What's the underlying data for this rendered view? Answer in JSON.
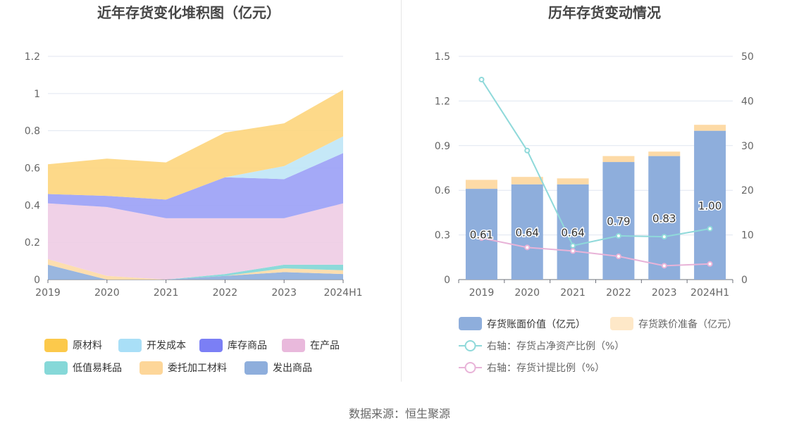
{
  "source": "数据来源：恒生聚源",
  "chart_data": [
    {
      "type": "area",
      "stacked": true,
      "title": "近年存货变化堆积图（亿元）",
      "categories": [
        "2019",
        "2020",
        "2021",
        "2022",
        "2023",
        "2024H1"
      ],
      "ylim": [
        0,
        1.2
      ],
      "yticks": [
        "0",
        "0.2",
        "0.4",
        "0.6",
        "0.8",
        "1",
        "1.2"
      ],
      "grid": true,
      "legend_position": "bottom",
      "series": [
        {
          "name": "发出商品",
          "color": "#8eaedc",
          "values": [
            0.08,
            0.0,
            0.0,
            0.02,
            0.04,
            0.03
          ]
        },
        {
          "name": "委托加工材料",
          "color": "#fddaa6",
          "values": [
            0.03,
            0.02,
            0.0,
            0.0,
            0.02,
            0.02
          ]
        },
        {
          "name": "低值易耗品",
          "color": "#7fd6d6",
          "values": [
            0.0,
            0.0,
            0.0,
            0.01,
            0.02,
            0.03
          ]
        },
        {
          "name": "在产品",
          "color": "#eecce4",
          "values": [
            0.3,
            0.37,
            0.33,
            0.3,
            0.25,
            0.33
          ]
        },
        {
          "name": "库存商品",
          "color": "#9aa0f6",
          "values": [
            0.05,
            0.06,
            0.1,
            0.22,
            0.21,
            0.27
          ]
        },
        {
          "name": "开发成本",
          "color": "#bfe5f6",
          "values": [
            0.0,
            0.0,
            0.0,
            0.0,
            0.07,
            0.09
          ]
        },
        {
          "name": "原材料",
          "color": "#fdd57c",
          "values": [
            0.16,
            0.2,
            0.2,
            0.24,
            0.23,
            0.25
          ]
        }
      ],
      "legend_order": [
        "原材料",
        "开发成本",
        "库存商品",
        "在产品",
        "低值易耗品",
        "委托加工材料",
        "发出商品"
      ],
      "legend_colors": {
        "原材料": "#fcc94b",
        "开发成本": "#a9dff7",
        "库存商品": "#7b7ff5",
        "在产品": "#e9b9dc",
        "低值易耗品": "#86d8d8",
        "委托加工材料": "#fdd699",
        "发出商品": "#8eaedc"
      }
    },
    {
      "type": "bar+line",
      "title": "历年存货变动情况",
      "categories": [
        "2019",
        "2020",
        "2021",
        "2022",
        "2023",
        "2024H1"
      ],
      "ylim_left": [
        0,
        1.5
      ],
      "yticks_left": [
        "0",
        "0.3",
        "0.6",
        "0.9",
        "1.2",
        "1.5"
      ],
      "ylim_right": [
        0,
        50
      ],
      "yticks_right": [
        "0",
        "10",
        "20",
        "30",
        "40",
        "50"
      ],
      "grid": true,
      "legend_position": "bottom",
      "bars": [
        {
          "name": "存货账面价值（亿元）",
          "color": "#8eaedc",
          "values": [
            0.61,
            0.64,
            0.64,
            0.79,
            0.83,
            1.0
          ],
          "labels": [
            "0.61",
            "0.64",
            "0.64",
            "0.79",
            "0.83",
            "1.00"
          ]
        },
        {
          "name": "存货跌价准备（亿元）",
          "color": "#fddaa6",
          "values": [
            0.06,
            0.05,
            0.04,
            0.04,
            0.03,
            0.04
          ]
        }
      ],
      "lines": [
        {
          "name": "右轴：存货占净资产比例（%）",
          "color": "#8fd9da",
          "axis": "right",
          "values": [
            44.8,
            28.9,
            7.6,
            9.8,
            9.6,
            11.4
          ]
        },
        {
          "name": "右轴：存货计提比例（%）",
          "color": "#e8b3d8",
          "axis": "right",
          "values": [
            9.3,
            7.2,
            6.4,
            5.2,
            3.1,
            3.5
          ]
        }
      ]
    }
  ]
}
